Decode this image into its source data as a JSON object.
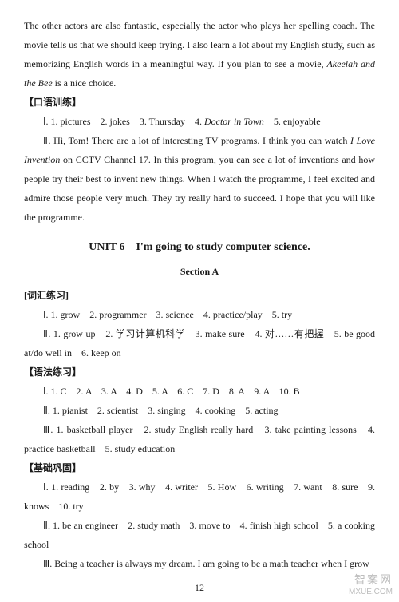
{
  "intro": {
    "p1a": "The other actors are also fantastic, especially the actor who plays her spelling coach. The movie tells us that we should keep trying. I also learn a lot about my English study, such as memorizing English words in a meaningful way. If you plan to see a movie, ",
    "p1_title": "Akeelah and the Bee",
    "p1b": " is a nice choice."
  },
  "oral": {
    "label": "【口语训练】",
    "line1a": "Ⅰ. 1. pictures　2. jokes　3. Thursday　4. ",
    "line1_title": "Doctor in Town",
    "line1b": "　5. enjoyable",
    "line2a": "Ⅱ. Hi, Tom! There are a lot of interesting TV programs. I think you can watch ",
    "line2_title": "I Love Invention",
    "line2b": " on CCTV Channel 17. In this program, you can see a lot of inventions and how people try their best to invent new things. When I watch the programme, I feel excited and admire those people very much. They try really hard to succeed. I hope that you will like the programme."
  },
  "unit": {
    "title": "UNIT 6　I'm going to study computer science.",
    "sectionA": "Section A"
  },
  "vocab": {
    "label": "[词汇练习]",
    "line1": "Ⅰ. 1. grow　2. programmer　3. science　4. practice/play　5. try",
    "line2": "Ⅱ. 1. grow up　2. 学习计算机科学　3. make sure　4. 对……有把握　5. be good at/do well in　6. keep on"
  },
  "grammar": {
    "label": "【语法练习】",
    "line1": "Ⅰ. 1. C　2. A　3. A　4. D　5. A　6. C　7. D　8. A　9. A　10. B",
    "line2": "Ⅱ. 1. pianist　2. scientist　3. singing　4. cooking　5. acting",
    "line3": "Ⅲ. 1. basketball player　2. study English really hard　3. take painting lessons　4. practice basketball　5. study education"
  },
  "basic": {
    "label": "【基础巩固】",
    "line1": "Ⅰ. 1. reading　2. by　3. why　4. writer　5. How　6. writing　7. want　8. sure　9. knows　10. try",
    "line2": "Ⅱ. 1. be an engineer　2. study math　3. move to　4. finish high school　5. a cooking school",
    "line3": "Ⅲ. Being a teacher is always my dream. I am going to be a math teacher when I grow"
  },
  "pagenum": "12",
  "watermark": {
    "top": "智案网",
    "bottom": "MXUE.COM"
  }
}
